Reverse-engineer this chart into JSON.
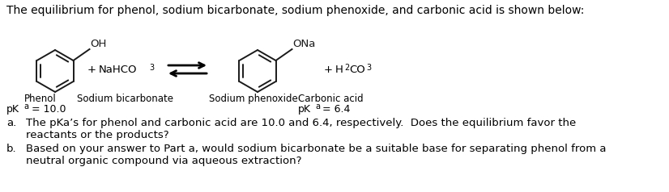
{
  "title_line": "The equilibrium for phenol, sodium bicarbonate, sodium phenoxide, and carbonic acid is shown below:",
  "label_phenol": "Phenol",
  "label_sodium_bic": "Sodium bicarbonate",
  "label_sodium_phen": "Sodium phenoxide",
  "label_carbonic": "Carbonic acid",
  "part_a_label": "a.",
  "part_b_label": "b.",
  "part_a_line1": "The pKa’s for phenol and carbonic acid are 10.0 and 6.4, respectively.  Does the equilibrium favor the",
  "part_a_line2": "reactants or the products?",
  "part_b_line1": "Based on your answer to Part a, would sodium bicarbonate be a suitable base for separating phenol from a",
  "part_b_line2": "neutral organic compound via aqueous extraction?",
  "pka_left_pre": "pK",
  "pka_left_sub": "a",
  "pka_left_post": " = 10.0",
  "pka_right_pre": "pK",
  "pka_right_sub": "a",
  "pka_right_post": " = 6.4",
  "bg_color": "#ffffff",
  "text_color": "#000000",
  "chem_color": "#1a1a1a",
  "title_fs": 10,
  "label_fs": 8.5,
  "body_fs": 9.5,
  "pka_fs": 9,
  "chem_fs": 9.5,
  "sub_fs": 7
}
